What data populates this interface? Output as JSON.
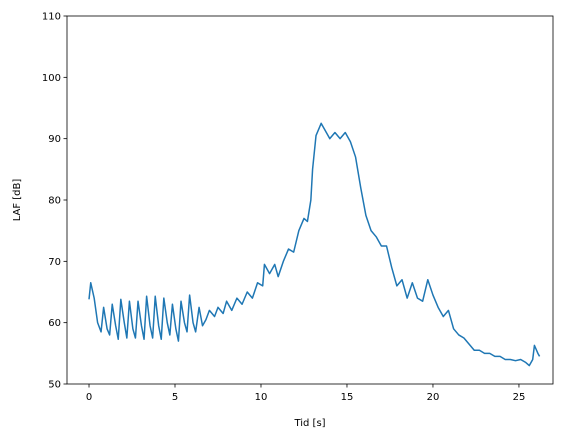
{
  "chart_data": {
    "type": "line",
    "xlabel": "Tid [s]",
    "ylabel": "LAF [dB]",
    "xlim": [
      -1.28,
      26.98
    ],
    "ylim": [
      50,
      110
    ],
    "xticks": [
      0,
      5,
      10,
      15,
      20,
      25
    ],
    "yticks": [
      50,
      60,
      70,
      80,
      90,
      100,
      110
    ],
    "grid": false,
    "x": [
      0,
      0.1,
      0.3,
      0.5,
      0.7,
      0.85,
      1.05,
      1.2,
      1.35,
      1.55,
      1.7,
      1.85,
      2.05,
      2.2,
      2.35,
      2.55,
      2.7,
      2.85,
      3.05,
      3.2,
      3.35,
      3.55,
      3.7,
      3.85,
      4.05,
      4.2,
      4.35,
      4.55,
      4.7,
      4.85,
      5.05,
      5.2,
      5.35,
      5.55,
      5.7,
      5.85,
      6.05,
      6.2,
      6.4,
      6.6,
      6.8,
      7,
      7.3,
      7.5,
      7.8,
      8,
      8.3,
      8.6,
      8.9,
      9.2,
      9.5,
      9.8,
      10.1,
      10.2,
      10.5,
      10.8,
      11,
      11.3,
      11.6,
      11.9,
      12.2,
      12.5,
      12.7,
      12.9,
      13,
      13.2,
      13.5,
      13.8,
      14,
      14.3,
      14.6,
      14.9,
      15.2,
      15.5,
      15.8,
      16.1,
      16.4,
      16.7,
      17,
      17.3,
      17.6,
      17.9,
      18.2,
      18.5,
      18.8,
      19.1,
      19.4,
      19.7,
      20,
      20.3,
      20.6,
      20.9,
      21.2,
      21.5,
      21.8,
      22.1,
      22.4,
      22.7,
      23,
      23.3,
      23.6,
      23.9,
      24.2,
      24.5,
      24.8,
      25.1,
      25.4,
      25.6,
      25.8,
      25.9,
      26.1,
      26.2
    ],
    "series": [
      {
        "name": "LAF",
        "color": "#1f77b4",
        "values": [
          63.8,
          66.5,
          64,
          60,
          58.5,
          62.5,
          59,
          58,
          63,
          59.5,
          57.3,
          63.8,
          60,
          57.5,
          63.5,
          59,
          57.5,
          63.5,
          59.5,
          57.3,
          64.3,
          59.5,
          57.5,
          64.3,
          59.5,
          57.3,
          64,
          60,
          58,
          63,
          59,
          57,
          63.5,
          60,
          58.5,
          64.5,
          60,
          58.5,
          62.5,
          59.5,
          60.5,
          62,
          61,
          62.5,
          61.5,
          63.5,
          62,
          64,
          63,
          65,
          64,
          66.5,
          66,
          69.5,
          68,
          69.5,
          67.5,
          70,
          72,
          71.5,
          75,
          77,
          76.5,
          80,
          85,
          90.5,
          92.5,
          91,
          90,
          91,
          90,
          91,
          89.5,
          87,
          82,
          77.5,
          75,
          74,
          72.5,
          72.5,
          69,
          66,
          67,
          64,
          66.5,
          64,
          63.5,
          67,
          64.5,
          62.5,
          61,
          62,
          59,
          58,
          57.5,
          56.5,
          55.5,
          55.5,
          55,
          55,
          54.5,
          54.5,
          54,
          54,
          53.8,
          54,
          53.5,
          53,
          54,
          56.3,
          55,
          54.5
        ]
      }
    ]
  }
}
